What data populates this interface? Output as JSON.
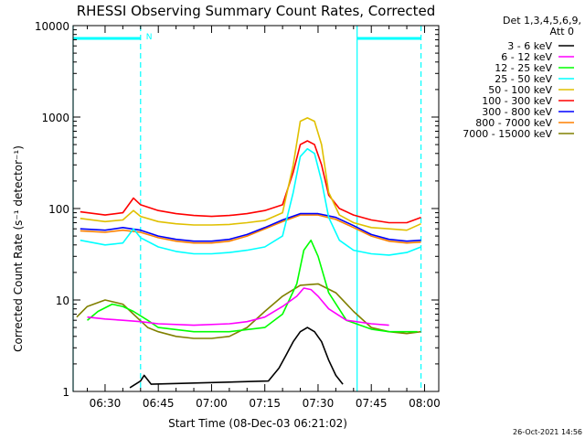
{
  "chart_data": {
    "type": "line",
    "title": "RHESSI Observing Summary Count Rates, Corrected",
    "ylabel": "Corrected Count Rate (s⁻¹ detector⁻¹)",
    "xlabel": "Start Time (08-Dec-03 06:21:02)",
    "y_scale": "log",
    "ylim": [
      1,
      10000
    ],
    "y_ticks": [
      1,
      10,
      100,
      1000,
      10000
    ],
    "y_tick_labels": [
      "1",
      "10",
      "100",
      "1000",
      "10000"
    ],
    "xlim_minutes": [
      381.0,
      484.0
    ],
    "x_ticks": [
      "06:30",
      "06:45",
      "07:00",
      "07:15",
      "07:30",
      "07:45",
      "08:00"
    ],
    "x_tick_minutes": [
      390,
      405,
      420,
      435,
      450,
      465,
      480
    ],
    "legend_header": [
      "Det 1,3,4,5,6,9,",
      "Att 0"
    ],
    "legend_position": "right",
    "footer_timestamp": "26-Oct-2021 14:56",
    "night_marker": "N",
    "series": [
      {
        "name": "3 - 6 keV",
        "color": "#000000",
        "x": [
          "06:37",
          "06:40",
          "06:41",
          "06:43",
          "07:16",
          "07:19",
          "07:21",
          "07:23",
          "07:25",
          "07:27",
          "07:29",
          "07:31",
          "07:33",
          "07:35",
          "07:37"
        ],
        "y": [
          1.1,
          1.3,
          1.5,
          1.2,
          1.3,
          1.8,
          2.5,
          3.5,
          4.5,
          5.0,
          4.5,
          3.5,
          2.2,
          1.5,
          1.2
        ]
      },
      {
        "name": "6 - 12 keV",
        "color": "#ff00ff",
        "x": [
          "06:25",
          "06:30",
          "06:35",
          "06:40",
          "06:45",
          "06:55",
          "07:05",
          "07:10",
          "07:15",
          "07:20",
          "07:24",
          "07:26",
          "07:28",
          "07:30",
          "07:33",
          "07:38",
          "07:45",
          "07:50"
        ],
        "y": [
          6.5,
          6.2,
          6.0,
          5.8,
          5.5,
          5.3,
          5.5,
          5.8,
          6.5,
          8.5,
          11,
          13.5,
          13,
          11,
          8,
          6,
          5.5,
          5.3
        ]
      },
      {
        "name": "12 - 25 keV",
        "color": "#00ff00",
        "x": [
          "06:25",
          "06:28",
          "06:32",
          "06:35",
          "06:38",
          "06:42",
          "06:45",
          "06:55",
          "07:05",
          "07:15",
          "07:20",
          "07:24",
          "07:26",
          "07:28",
          "07:30",
          "07:33",
          "07:38",
          "07:45",
          "07:50",
          "07:58"
        ],
        "y": [
          6.0,
          7.5,
          9.0,
          8.5,
          7.5,
          6.0,
          5.0,
          4.5,
          4.5,
          5.0,
          7.0,
          15,
          35,
          45,
          30,
          12,
          6,
          4.8,
          4.5,
          4.5
        ]
      },
      {
        "name": "25 - 50 keV",
        "color": "#00ffff",
        "x": [
          "06:23",
          "06:30",
          "06:35",
          "06:38",
          "06:40",
          "06:45",
          "06:50",
          "06:55",
          "07:00",
          "07:05",
          "07:10",
          "07:15",
          "07:20",
          "07:23",
          "07:25",
          "07:27",
          "07:29",
          "07:31",
          "07:33",
          "07:36",
          "07:40",
          "07:45",
          "07:50",
          "07:55",
          "07:59"
        ],
        "y": [
          45,
          40,
          42,
          60,
          48,
          38,
          34,
          32,
          32,
          33,
          35,
          38,
          50,
          150,
          370,
          450,
          400,
          200,
          80,
          45,
          35,
          32,
          31,
          33,
          38
        ]
      },
      {
        "name": "50 - 100 keV",
        "color": "#e0c000",
        "x": [
          "06:23",
          "06:30",
          "06:35",
          "06:38",
          "06:40",
          "06:45",
          "06:50",
          "06:55",
          "07:00",
          "07:05",
          "07:10",
          "07:15",
          "07:20",
          "07:23",
          "07:25",
          "07:27",
          "07:29",
          "07:31",
          "07:33",
          "07:36",
          "07:40",
          "07:45",
          "07:50",
          "07:55",
          "07:59"
        ],
        "y": [
          78,
          72,
          75,
          95,
          82,
          72,
          68,
          66,
          66,
          67,
          70,
          74,
          90,
          300,
          900,
          980,
          900,
          500,
          150,
          85,
          70,
          62,
          60,
          58,
          68
        ]
      },
      {
        "name": "100 - 300 keV",
        "color": "#ff0000",
        "x": [
          "06:23",
          "06:30",
          "06:35",
          "06:38",
          "06:40",
          "06:45",
          "06:50",
          "06:55",
          "07:00",
          "07:05",
          "07:10",
          "07:15",
          "07:20",
          "07:23",
          "07:25",
          "07:27",
          "07:29",
          "07:31",
          "07:33",
          "07:36",
          "07:40",
          "07:45",
          "07:50",
          "07:55",
          "07:59"
        ],
        "y": [
          92,
          85,
          90,
          130,
          110,
          95,
          88,
          84,
          82,
          84,
          88,
          95,
          110,
          250,
          500,
          550,
          500,
          300,
          140,
          100,
          85,
          75,
          70,
          70,
          80
        ]
      },
      {
        "name": "300 - 800 keV",
        "color": "#0000ff",
        "x": [
          "06:23",
          "06:30",
          "06:35",
          "06:40",
          "06:45",
          "06:50",
          "06:55",
          "07:00",
          "07:05",
          "07:10",
          "07:15",
          "07:20",
          "07:25",
          "07:30",
          "07:35",
          "07:40",
          "07:45",
          "07:50",
          "07:55",
          "07:59"
        ],
        "y": [
          60,
          58,
          62,
          58,
          50,
          46,
          44,
          44,
          46,
          52,
          62,
          75,
          88,
          88,
          80,
          65,
          52,
          46,
          44,
          45
        ]
      },
      {
        "name": "800 - 7000 keV",
        "color": "#ff8000",
        "x": [
          "06:23",
          "06:30",
          "06:35",
          "06:40",
          "06:45",
          "06:50",
          "06:55",
          "07:00",
          "07:05",
          "07:10",
          "07:15",
          "07:20",
          "07:25",
          "07:30",
          "07:35",
          "07:40",
          "07:45",
          "07:50",
          "07:55",
          "07:59"
        ],
        "y": [
          57,
          55,
          58,
          55,
          48,
          44,
          42,
          42,
          44,
          50,
          60,
          72,
          85,
          85,
          76,
          62,
          50,
          44,
          42,
          43
        ]
      },
      {
        "name": "7000 - 15000 keV",
        "color": "#808000",
        "x": [
          "06:22",
          "06:25",
          "06:30",
          "06:35",
          "06:38",
          "06:42",
          "06:45",
          "06:50",
          "06:55",
          "07:00",
          "07:05",
          "07:10",
          "07:15",
          "07:20",
          "07:25",
          "07:30",
          "07:35",
          "07:40",
          "07:45",
          "07:50",
          "07:55",
          "07:59"
        ],
        "y": [
          6.5,
          8.5,
          10,
          9,
          7,
          5.0,
          4.5,
          4.0,
          3.8,
          3.8,
          4.0,
          5.0,
          7.5,
          11,
          14.5,
          15,
          12,
          7.5,
          5.0,
          4.5,
          4.3,
          4.5
        ]
      }
    ]
  }
}
